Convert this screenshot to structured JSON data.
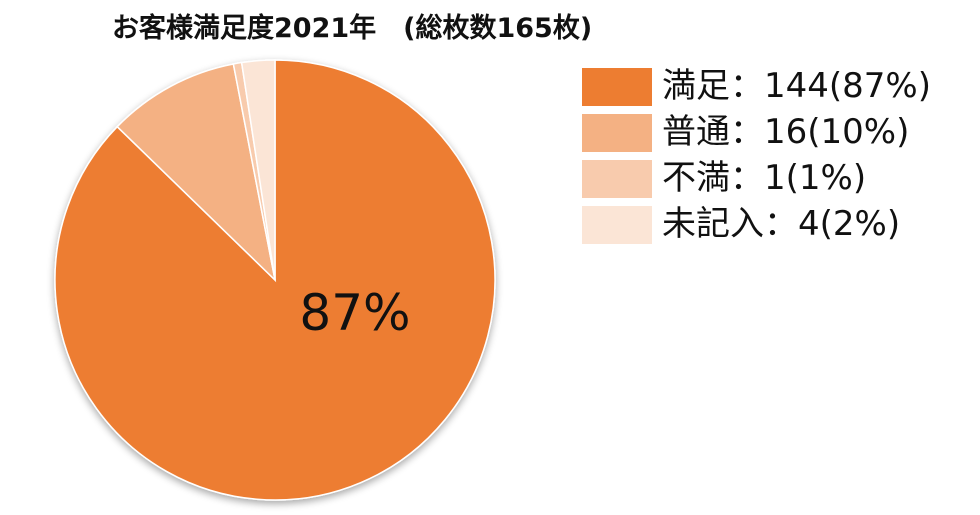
{
  "chart_data": {
    "type": "pie",
    "title": "お客様満足度2021年　(総枚数165枚)",
    "categories": [
      "満足",
      "普通",
      "不満",
      "未記入"
    ],
    "values": [
      144,
      16,
      1,
      4
    ],
    "percentages": [
      87,
      10,
      1,
      2
    ],
    "legend_labels": [
      "満足：144(87%)",
      "普通：16(10%)",
      "不満：1(1%)",
      "未記入：4(2%)"
    ],
    "data_labels": [
      "87%"
    ],
    "legend_position": "top-right",
    "colors": [
      "#ed7d31",
      "#f4b183",
      "#f8cbad",
      "#fbe5d6"
    ]
  }
}
